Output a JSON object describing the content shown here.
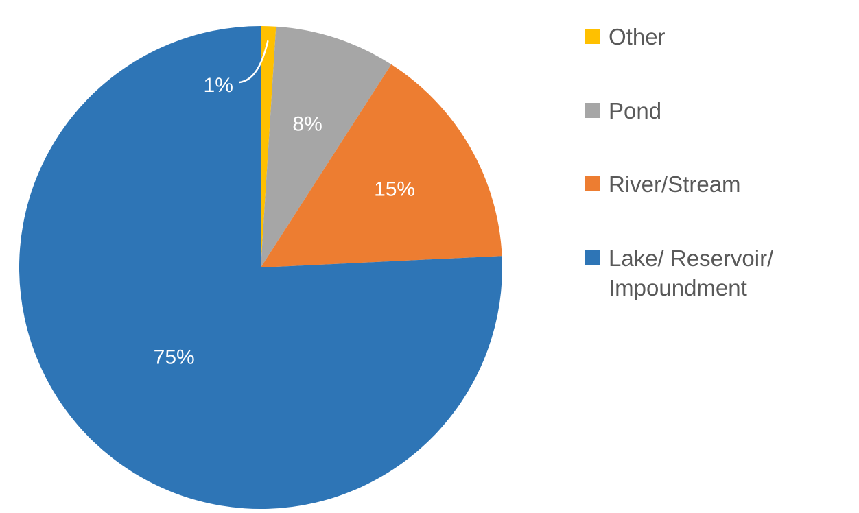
{
  "chart_data": {
    "type": "pie",
    "title": "",
    "categories": [
      "Other",
      "Pond",
      "River/Stream",
      "Lake/ Reservoir/ Impoundment"
    ],
    "values": [
      1,
      8,
      15,
      75
    ],
    "data_labels": [
      "1%",
      "8%",
      "15%",
      "75%"
    ],
    "colors": [
      "#FFC000",
      "#A6A6A6",
      "#ED7D31",
      "#2E75B6"
    ],
    "label_color": "#FFFFFF",
    "label_font_size": 30,
    "legend_position": "right",
    "legend_text_color": "#595959",
    "start_angle_deg": 0,
    "direction": "clockwise",
    "label_layout": {
      "radius_frac": [
        0.77,
        0.62,
        0.64,
        0.52
      ],
      "angle_offset_deg": [
        -15,
        0,
        0,
        0
      ],
      "leader_line_index": 0,
      "leader_line_color": "#FFFFFF"
    }
  }
}
